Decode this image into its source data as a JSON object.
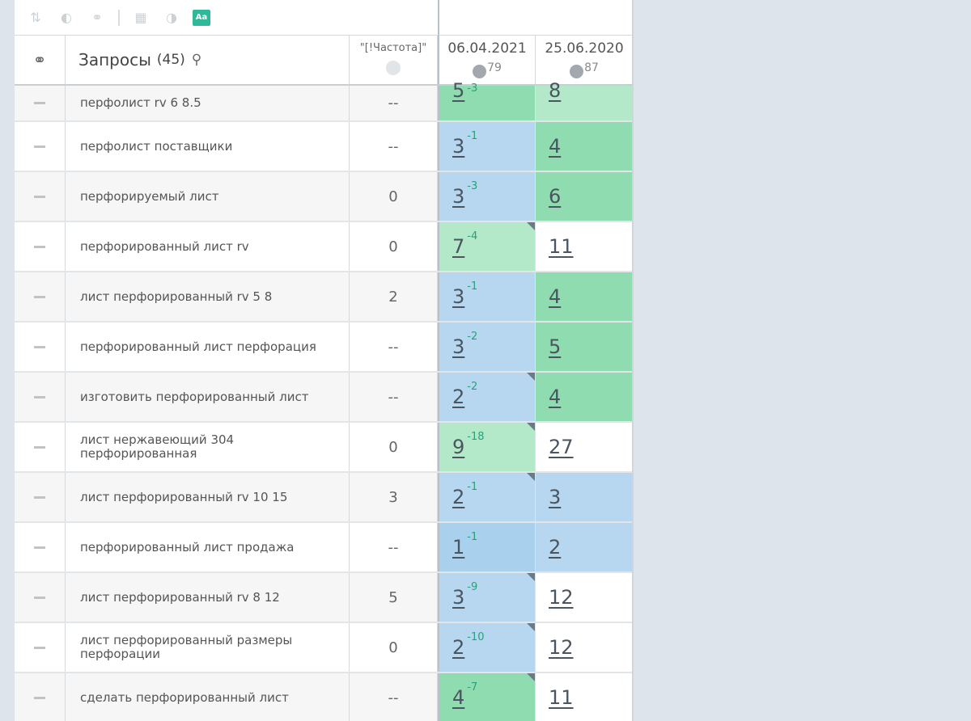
{
  "toolbar": {
    "icons": [
      "sort-icon",
      "toggle-icon",
      "link-icon",
      "table-icon",
      "contrast-icon",
      "font-icon"
    ],
    "font_label": "Aa"
  },
  "header": {
    "link_icon": "link-icon",
    "query_title": "Запросы",
    "query_count": "(45)",
    "search_icon": "search-icon",
    "freq_label": "\"[!Частота]\"",
    "date1": "06.04.2021",
    "date1_sup": "79",
    "date2": "25.06.2020",
    "date2_sup": "87"
  },
  "rows": [
    {
      "query": "перфолист rv 6 8.5",
      "freq": "--",
      "p1": "5",
      "d1": "-3",
      "p2": "8",
      "c1": "green",
      "c2": "lgreen",
      "flag": false
    },
    {
      "query": "перфолист поставщики",
      "freq": "--",
      "p1": "3",
      "d1": "-1",
      "p2": "4",
      "c1": "blue",
      "c2": "green",
      "flag": false
    },
    {
      "query": "перфорируемый лист",
      "freq": "0",
      "p1": "3",
      "d1": "-3",
      "p2": "6",
      "c1": "blue",
      "c2": "green",
      "flag": false
    },
    {
      "query": "перфорированный лист rv",
      "freq": "0",
      "p1": "7",
      "d1": "-4",
      "p2": "11",
      "c1": "lgreen",
      "c2": "white",
      "flag": true
    },
    {
      "query": "лист перфорированный rv 5 8",
      "freq": "2",
      "p1": "3",
      "d1": "-1",
      "p2": "4",
      "c1": "blue",
      "c2": "green",
      "flag": false
    },
    {
      "query": "перфорированный лист перфорация",
      "freq": "--",
      "p1": "3",
      "d1": "-2",
      "p2": "5",
      "c1": "blue",
      "c2": "green",
      "flag": false
    },
    {
      "query": "изготовить перфорированный лист",
      "freq": "--",
      "p1": "2",
      "d1": "-2",
      "p2": "4",
      "c1": "blue",
      "c2": "green",
      "flag": true
    },
    {
      "query": "лист нержавеющий 304 перфорированная",
      "freq": "0",
      "p1": "9",
      "d1": "-18",
      "p2": "27",
      "c1": "lgreen",
      "c2": "white",
      "flag": true
    },
    {
      "query": "лист перфорированный rv 10 15",
      "freq": "3",
      "p1": "2",
      "d1": "-1",
      "p2": "3",
      "c1": "blue",
      "c2": "blue",
      "flag": true
    },
    {
      "query": "перфорированный лист продажа",
      "freq": "--",
      "p1": "1",
      "d1": "-1",
      "p2": "2",
      "c1": "blue2",
      "c2": "blue",
      "flag": false
    },
    {
      "query": "лист перфорированный rv 8 12",
      "freq": "5",
      "p1": "3",
      "d1": "-9",
      "p2": "12",
      "c1": "blue",
      "c2": "white",
      "flag": true
    },
    {
      "query": "лист перфорированный размеры перфорации",
      "freq": "0",
      "p1": "2",
      "d1": "-10",
      "p2": "12",
      "c1": "blue",
      "c2": "white",
      "flag": true
    },
    {
      "query": "сделать перфорированный лист",
      "freq": "--",
      "p1": "4",
      "d1": "-7",
      "p2": "11",
      "c1": "green",
      "c2": "white",
      "flag": true
    }
  ]
}
